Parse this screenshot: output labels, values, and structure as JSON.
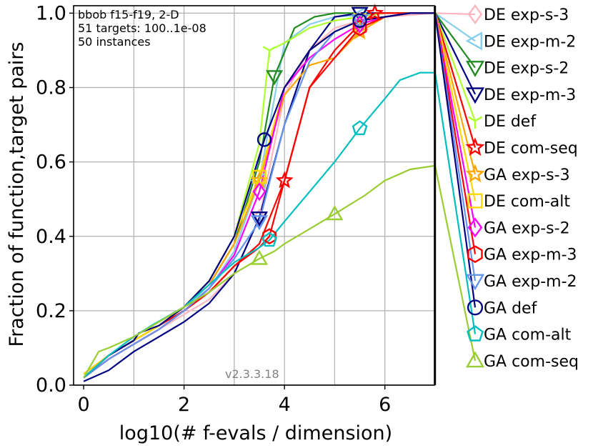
{
  "chart_data": {
    "type": "line",
    "title": "",
    "xlabel": "log10(# f-evals / dimension)",
    "ylabel": "Fraction of function,target pairs",
    "xlim": [
      -0.2,
      7.0
    ],
    "ylim": [
      0.0,
      1.02
    ],
    "x_ticks": [
      "0",
      "2",
      "4",
      "6"
    ],
    "x_tick_values": [
      0,
      2,
      4,
      6
    ],
    "y_ticks": [
      "0.0",
      "0.2",
      "0.4",
      "0.6",
      "0.8",
      "1.0"
    ],
    "y_tick_values": [
      0.0,
      0.2,
      0.4,
      0.6,
      0.8,
      1.0
    ],
    "grid": true,
    "info_lines": [
      "bbob f15-f19, 2-D",
      "51 targets: 100..1e-08",
      "50 instances"
    ],
    "version": "v2.3.3.18",
    "legend_position": "right, outside plot",
    "series": [
      {
        "name": "DE exp-s-3",
        "color": "#ffb6c1",
        "marker": "diamond",
        "x": [
          0.0,
          0.5,
          1.0,
          1.5,
          2.0,
          2.5,
          3.0,
          3.5,
          4.0,
          4.5,
          5.0,
          5.5,
          6.0,
          6.5,
          7.0
        ],
        "y": [
          0.02,
          0.07,
          0.11,
          0.15,
          0.19,
          0.23,
          0.3,
          0.45,
          0.78,
          0.9,
          0.96,
          0.98,
          0.99,
          0.995,
          1.0
        ],
        "end_y": 0.98
      },
      {
        "name": "DE exp-m-2",
        "color": "#87ceeb",
        "marker": "triangle-left",
        "x": [
          0.0,
          0.5,
          1.0,
          1.5,
          2.0,
          2.5,
          3.0,
          3.5,
          4.0,
          4.5,
          5.0,
          5.5,
          6.0,
          6.5,
          7.0
        ],
        "y": [
          0.02,
          0.08,
          0.12,
          0.16,
          0.21,
          0.26,
          0.36,
          0.55,
          0.92,
          0.97,
          0.99,
          0.995,
          1.0,
          1.0,
          1.0
        ],
        "end_y": 0.95
      },
      {
        "name": "DE exp-s-2",
        "color": "#228b22",
        "marker": "triangle-down",
        "x": [
          0.0,
          0.5,
          1.0,
          1.5,
          2.0,
          2.5,
          3.0,
          3.5,
          3.8,
          4.2,
          4.6,
          5.0,
          5.5,
          6.0,
          6.5,
          7.0
        ],
        "y": [
          0.02,
          0.08,
          0.12,
          0.16,
          0.21,
          0.27,
          0.38,
          0.6,
          0.83,
          0.96,
          0.99,
          1.0,
          1.0,
          1.0,
          1.0,
          1.0
        ],
        "end_y": 0.9
      },
      {
        "name": "DE exp-m-3",
        "color": "#000080",
        "marker": "triangle-down",
        "x": [
          0.0,
          0.5,
          1.0,
          1.5,
          2.0,
          2.5,
          3.0,
          3.5,
          4.0,
          4.5,
          5.0,
          5.5,
          6.0,
          6.5,
          7.0
        ],
        "y": [
          0.01,
          0.04,
          0.09,
          0.13,
          0.17,
          0.22,
          0.3,
          0.45,
          0.7,
          0.9,
          0.99,
          1.0,
          1.0,
          1.0,
          1.0
        ],
        "end_y": 0.78
      },
      {
        "name": "DE def",
        "color": "#adff2f",
        "marker": "tri-down",
        "x": [
          0.0,
          0.5,
          1.0,
          1.5,
          2.0,
          2.5,
          3.0,
          3.5,
          3.7,
          4.0,
          4.5,
          5.0,
          5.5,
          6.0,
          6.5,
          7.0
        ],
        "y": [
          0.02,
          0.08,
          0.12,
          0.16,
          0.21,
          0.28,
          0.4,
          0.65,
          0.9,
          0.92,
          0.96,
          0.98,
          0.99,
          1.0,
          1.0,
          1.0
        ],
        "end_y": 0.69
      },
      {
        "name": "DE com-seq",
        "color": "#ff0000",
        "marker": "star",
        "x": [
          0.0,
          0.5,
          1.0,
          1.5,
          2.0,
          2.5,
          3.0,
          3.5,
          4.0,
          4.5,
          5.0,
          5.5,
          5.8,
          6.0,
          6.5,
          7.0
        ],
        "y": [
          0.03,
          0.08,
          0.12,
          0.16,
          0.2,
          0.25,
          0.32,
          0.38,
          0.55,
          0.8,
          0.9,
          0.97,
          1.0,
          1.0,
          1.0,
          1.0
        ],
        "end_y": 0.62
      },
      {
        "name": "GA exp-s-3",
        "color": "#ffa500",
        "marker": "star",
        "x": [
          0.0,
          0.5,
          1.0,
          1.5,
          2.0,
          2.5,
          3.0,
          3.5,
          4.0,
          4.5,
          5.0,
          5.5,
          6.0,
          6.5,
          7.0
        ],
        "y": [
          0.03,
          0.08,
          0.12,
          0.16,
          0.21,
          0.27,
          0.38,
          0.55,
          0.78,
          0.86,
          0.88,
          0.95,
          0.99,
          1.0,
          1.0
        ],
        "end_y": 0.55
      },
      {
        "name": "DE com-alt",
        "color": "#ffd700",
        "marker": "square",
        "x": [
          0.0,
          0.5,
          1.0,
          1.5,
          2.0,
          2.5,
          3.0,
          3.5,
          4.0,
          4.5,
          5.0,
          5.5,
          6.0,
          6.5,
          7.0
        ],
        "y": [
          0.03,
          0.08,
          0.12,
          0.16,
          0.21,
          0.28,
          0.4,
          0.56,
          0.8,
          0.9,
          0.95,
          0.98,
          0.99,
          1.0,
          1.0
        ],
        "end_y": 0.47
      },
      {
        "name": "GA exp-s-2",
        "color": "#ff00ff",
        "marker": "diamond",
        "x": [
          0.0,
          0.5,
          1.0,
          1.5,
          2.0,
          2.5,
          3.0,
          3.5,
          4.0,
          4.5,
          5.0,
          5.5,
          6.0,
          6.5,
          7.0
        ],
        "y": [
          0.02,
          0.07,
          0.11,
          0.15,
          0.2,
          0.26,
          0.35,
          0.52,
          0.8,
          0.88,
          0.93,
          0.97,
          0.99,
          1.0,
          1.0
        ],
        "end_y": 0.4
      },
      {
        "name": "GA exp-m-3",
        "color": "#ff0000",
        "marker": "hexagon",
        "x": [
          0.0,
          0.5,
          1.0,
          1.5,
          2.0,
          2.5,
          3.0,
          3.5,
          3.7,
          4.0,
          4.5,
          5.0,
          5.5,
          6.0,
          6.5,
          7.0
        ],
        "y": [
          0.02,
          0.07,
          0.11,
          0.15,
          0.2,
          0.25,
          0.32,
          0.37,
          0.4,
          0.55,
          0.8,
          0.88,
          0.96,
          0.99,
          1.0,
          1.0
        ],
        "end_y": 0.33
      },
      {
        "name": "GA exp-m-2",
        "color": "#6495ed",
        "marker": "triangle-down",
        "x": [
          0.0,
          0.5,
          1.0,
          1.5,
          2.0,
          2.5,
          3.0,
          3.5,
          4.0,
          4.5,
          5.0,
          5.5,
          6.0,
          6.5,
          7.0
        ],
        "y": [
          0.02,
          0.07,
          0.11,
          0.15,
          0.2,
          0.26,
          0.34,
          0.44,
          0.7,
          0.87,
          0.95,
          0.98,
          0.99,
          1.0,
          1.0
        ],
        "end_y": 0.26
      },
      {
        "name": "GA def",
        "color": "#000080",
        "marker": "circle",
        "x": [
          0.0,
          0.5,
          1.0,
          1.1,
          1.5,
          2.0,
          2.5,
          3.0,
          3.6,
          4.0,
          4.5,
          5.0,
          5.5,
          6.0,
          6.5,
          7.0
        ],
        "y": [
          0.02,
          0.08,
          0.12,
          0.14,
          0.16,
          0.21,
          0.28,
          0.4,
          0.66,
          0.8,
          0.9,
          0.95,
          0.98,
          0.99,
          1.0,
          1.0
        ],
        "end_y": 0.19
      },
      {
        "name": "GA com-alt",
        "color": "#00bfbf",
        "marker": "pentagon",
        "x": [
          0.0,
          0.5,
          1.0,
          1.35,
          2.0,
          2.5,
          3.0,
          3.5,
          3.7,
          4.0,
          4.5,
          5.0,
          5.5,
          6.0,
          6.3,
          6.7,
          7.0
        ],
        "y": [
          0.02,
          0.08,
          0.13,
          0.16,
          0.21,
          0.27,
          0.33,
          0.37,
          0.39,
          0.44,
          0.52,
          0.6,
          0.69,
          0.77,
          0.82,
          0.84,
          0.84
        ],
        "end_y": 0.12
      },
      {
        "name": "GA com-seq",
        "color": "#9acd32",
        "marker": "triangle-up",
        "x": [
          0.0,
          0.3,
          0.5,
          1.0,
          1.5,
          2.0,
          2.5,
          3.0,
          3.5,
          3.8,
          4.0,
          4.5,
          5.0,
          5.6,
          6.0,
          6.5,
          7.0
        ],
        "y": [
          0.02,
          0.09,
          0.1,
          0.13,
          0.17,
          0.21,
          0.25,
          0.3,
          0.34,
          0.36,
          0.38,
          0.42,
          0.46,
          0.51,
          0.55,
          0.58,
          0.59
        ],
        "end_y": 0.05
      }
    ]
  }
}
